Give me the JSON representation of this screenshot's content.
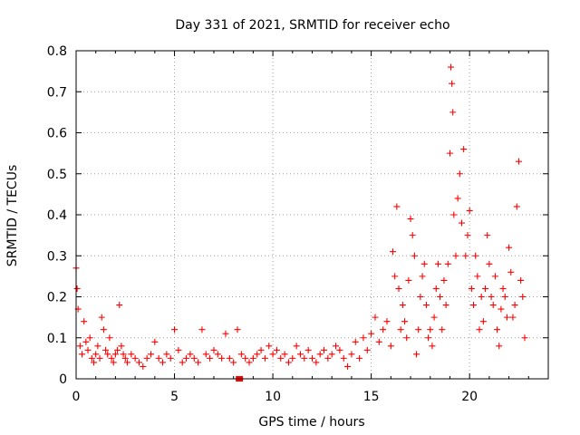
{
  "chart_data": {
    "type": "scatter",
    "title": "Day 331 of 2021, SRMTID for receiver echo",
    "xlabel": "GPS time / hours",
    "ylabel": "SRMTID / TECUs",
    "xlim": [
      0,
      24
    ],
    "ylim": [
      0,
      0.8
    ],
    "x_ticks": [
      0,
      5,
      10,
      15,
      20
    ],
    "x_tick_labels": [
      "0",
      "5",
      "10",
      "15",
      "20"
    ],
    "y_ticks": [
      0,
      0.1,
      0.2,
      0.3,
      0.4,
      0.5,
      0.6,
      0.7,
      0.8
    ],
    "y_tick_labels": [
      "0",
      "0.1",
      "0.2",
      "0.3",
      "0.4",
      "0.5",
      "0.6",
      "0.7",
      "0.8"
    ],
    "grid": true,
    "marker": "+",
    "color": "#ff0000",
    "series": [
      {
        "name": "SRMTID",
        "x": [
          0.0,
          0.05,
          0.1,
          0.2,
          0.3,
          0.4,
          0.5,
          0.6,
          0.7,
          0.8,
          0.9,
          1.0,
          1.1,
          1.2,
          1.3,
          1.4,
          1.5,
          1.6,
          1.7,
          1.8,
          1.9,
          2.0,
          2.1,
          2.2,
          2.3,
          2.4,
          2.5,
          2.6,
          2.8,
          3.0,
          3.2,
          3.4,
          3.6,
          3.8,
          4.0,
          4.2,
          4.4,
          4.6,
          4.8,
          5.0,
          5.2,
          5.4,
          5.6,
          5.8,
          6.0,
          6.2,
          6.4,
          6.6,
          6.8,
          7.0,
          7.2,
          7.4,
          7.6,
          7.8,
          8.0,
          8.2,
          8.4,
          8.6,
          8.8,
          9.0,
          9.2,
          9.4,
          9.6,
          9.8,
          10.0,
          10.2,
          10.4,
          10.6,
          10.8,
          11.0,
          11.2,
          11.4,
          11.6,
          11.8,
          12.0,
          12.2,
          12.4,
          12.6,
          12.8,
          13.0,
          13.2,
          13.4,
          13.6,
          13.8,
          14.0,
          14.2,
          14.4,
          14.6,
          14.8,
          15.0,
          15.2,
          15.4,
          15.6,
          15.8,
          16.0,
          16.1,
          16.2,
          16.3,
          16.4,
          16.5,
          16.6,
          16.7,
          16.8,
          16.9,
          17.0,
          17.1,
          17.2,
          17.3,
          17.4,
          17.5,
          17.6,
          17.7,
          17.8,
          17.9,
          18.0,
          18.1,
          18.2,
          18.3,
          18.4,
          18.5,
          18.6,
          18.7,
          18.8,
          18.9,
          19.0,
          19.05,
          19.1,
          19.15,
          19.2,
          19.3,
          19.4,
          19.5,
          19.6,
          19.7,
          19.8,
          19.9,
          20.0,
          20.1,
          20.2,
          20.3,
          20.4,
          20.5,
          20.6,
          20.7,
          20.8,
          20.9,
          21.0,
          21.1,
          21.2,
          21.3,
          21.4,
          21.5,
          21.6,
          21.7,
          21.8,
          21.9,
          22.0,
          22.1,
          22.2,
          22.3,
          22.4,
          22.5,
          22.6,
          22.7,
          22.8
        ],
        "y": [
          0.27,
          0.22,
          0.17,
          0.08,
          0.06,
          0.14,
          0.09,
          0.07,
          0.1,
          0.05,
          0.04,
          0.06,
          0.08,
          0.05,
          0.15,
          0.12,
          0.07,
          0.06,
          0.1,
          0.05,
          0.04,
          0.06,
          0.07,
          0.18,
          0.08,
          0.06,
          0.05,
          0.04,
          0.06,
          0.05,
          0.04,
          0.03,
          0.05,
          0.06,
          0.09,
          0.05,
          0.04,
          0.06,
          0.05,
          0.12,
          0.07,
          0.04,
          0.05,
          0.06,
          0.05,
          0.04,
          0.12,
          0.06,
          0.05,
          0.07,
          0.06,
          0.05,
          0.11,
          0.05,
          0.04,
          0.12,
          0.06,
          0.05,
          0.04,
          0.05,
          0.06,
          0.07,
          0.05,
          0.08,
          0.06,
          0.07,
          0.05,
          0.06,
          0.04,
          0.05,
          0.08,
          0.06,
          0.05,
          0.07,
          0.05,
          0.04,
          0.06,
          0.07,
          0.05,
          0.06,
          0.08,
          0.07,
          0.05,
          0.03,
          0.06,
          0.09,
          0.05,
          0.1,
          0.07,
          0.11,
          0.15,
          0.09,
          0.12,
          0.14,
          0.08,
          0.31,
          0.25,
          0.42,
          0.22,
          0.12,
          0.18,
          0.14,
          0.1,
          0.24,
          0.39,
          0.35,
          0.3,
          0.06,
          0.12,
          0.2,
          0.25,
          0.28,
          0.18,
          0.1,
          0.12,
          0.08,
          0.15,
          0.22,
          0.28,
          0.2,
          0.12,
          0.24,
          0.18,
          0.28,
          0.55,
          0.76,
          0.72,
          0.65,
          0.4,
          0.3,
          0.44,
          0.5,
          0.38,
          0.56,
          0.3,
          0.35,
          0.41,
          0.22,
          0.18,
          0.3,
          0.25,
          0.12,
          0.2,
          0.14,
          0.22,
          0.35,
          0.28,
          0.2,
          0.18,
          0.25,
          0.12,
          0.08,
          0.17,
          0.22,
          0.2,
          0.15,
          0.32,
          0.26,
          0.15,
          0.18,
          0.42,
          0.53,
          0.24,
          0.2,
          0.1
        ]
      }
    ],
    "markers": [
      {
        "name": "data-gap",
        "x": 8.3,
        "y": 0
      }
    ]
  }
}
